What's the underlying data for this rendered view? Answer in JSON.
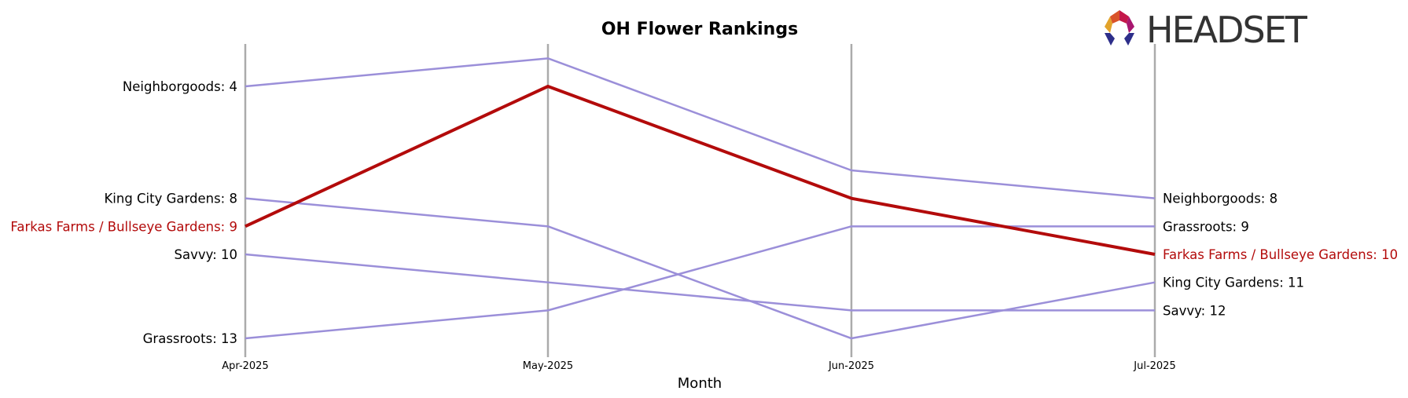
{
  "chart_data": {
    "type": "line",
    "title": "OH Flower Rankings",
    "xlabel": "Month",
    "ylabel": "",
    "x": [
      "Apr-2025",
      "May-2025",
      "Jun-2025",
      "Jul-2025"
    ],
    "y_inverted": true,
    "ylim": [
      13,
      3
    ],
    "grid": false,
    "series": [
      {
        "name": "Neighborgoods",
        "values": [
          4,
          3,
          7,
          8
        ],
        "highlight": false
      },
      {
        "name": "King City Gardens",
        "values": [
          8,
          9,
          13,
          11
        ],
        "highlight": false
      },
      {
        "name": "Farkas Farms / Bullseye Gardens",
        "values": [
          9,
          4,
          8,
          10
        ],
        "highlight": true
      },
      {
        "name": "Savvy",
        "values": [
          10,
          11,
          12,
          12
        ],
        "highlight": false
      },
      {
        "name": "Grassroots",
        "values": [
          13,
          12,
          9,
          9
        ],
        "highlight": false
      }
    ],
    "start_labels": [
      "Neighborgoods: 4",
      "King City Gardens: 8",
      "Farkas Farms / Bullseye Gardens: 9",
      "Savvy: 10",
      "Grassroots: 13"
    ],
    "end_labels": [
      "Neighborgoods: 8",
      "Grassroots: 9",
      "Farkas Farms / Bullseye Gardens: 10",
      "King City Gardens: 11",
      "Savvy: 12"
    ],
    "colors": {
      "series": "#9b8fd9",
      "highlight": "#b30b0b",
      "axis_line": "#ababab",
      "text": "#000000"
    }
  },
  "logo": {
    "text": "HEADSET",
    "colors": [
      "#e2a32b",
      "#d9532a",
      "#c4174a",
      "#a8166f",
      "#2d2e8a"
    ]
  }
}
